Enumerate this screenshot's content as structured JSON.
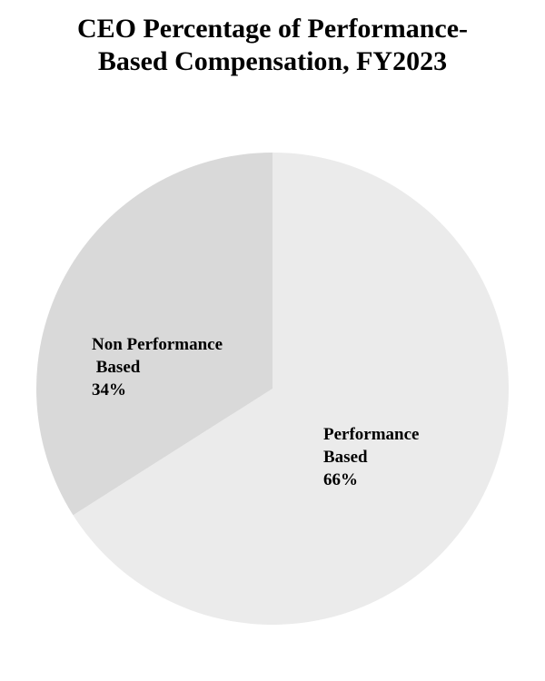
{
  "chart_data": {
    "type": "pie",
    "title_lines": [
      "CEO Percentage of Performance-",
      "Based Compensation, FY2023"
    ],
    "slices": [
      {
        "label_lines": [
          "Performance",
          "Based",
          "66%"
        ],
        "value": 66,
        "color": "#ebebeb"
      },
      {
        "label_lines": [
          "Non Performance",
          " Based",
          "34%"
        ],
        "value": 34,
        "color": "#d9d9d9"
      }
    ],
    "start_angle_deg": 0,
    "direction": "clockwise",
    "legend": "none"
  }
}
